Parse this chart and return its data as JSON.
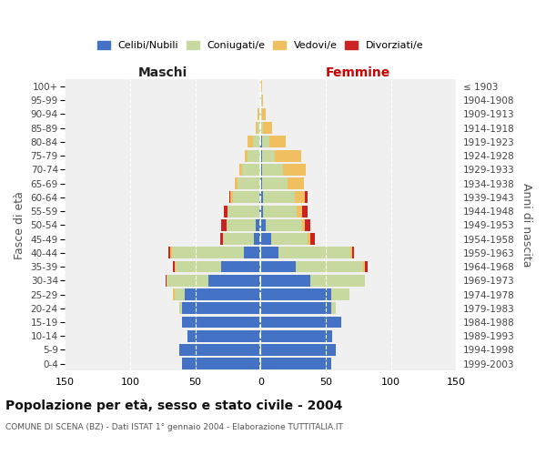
{
  "age_groups": [
    "0-4",
    "5-9",
    "10-14",
    "15-19",
    "20-24",
    "25-29",
    "30-34",
    "35-39",
    "40-44",
    "45-49",
    "50-54",
    "55-59",
    "60-64",
    "65-69",
    "70-74",
    "75-79",
    "80-84",
    "85-89",
    "90-94",
    "95-99",
    "100+"
  ],
  "birth_years": [
    "1999-2003",
    "1994-1998",
    "1989-1993",
    "1984-1988",
    "1979-1983",
    "1974-1978",
    "1969-1973",
    "1964-1968",
    "1959-1963",
    "1954-1958",
    "1949-1953",
    "1944-1948",
    "1939-1943",
    "1934-1938",
    "1929-1933",
    "1924-1928",
    "1919-1923",
    "1914-1918",
    "1909-1913",
    "1904-1908",
    "≤ 1903"
  ],
  "male_celibi": [
    60,
    62,
    56,
    60,
    60,
    58,
    40,
    30,
    13,
    5,
    4,
    1,
    1,
    0,
    0,
    0,
    0,
    0,
    0,
    0,
    0
  ],
  "male_coniugati": [
    0,
    0,
    0,
    0,
    2,
    8,
    32,
    35,
    55,
    24,
    22,
    24,
    20,
    18,
    14,
    10,
    6,
    2,
    1,
    0,
    0
  ],
  "male_vedovi": [
    0,
    0,
    0,
    0,
    0,
    1,
    0,
    1,
    1,
    0,
    0,
    0,
    2,
    2,
    2,
    2,
    4,
    2,
    1,
    0,
    0
  ],
  "male_divorziati": [
    0,
    0,
    0,
    0,
    0,
    0,
    1,
    1,
    2,
    2,
    4,
    3,
    1,
    0,
    0,
    0,
    0,
    0,
    0,
    0,
    0
  ],
  "female_celibi": [
    54,
    58,
    55,
    62,
    54,
    54,
    38,
    27,
    14,
    8,
    4,
    2,
    2,
    1,
    1,
    1,
    1,
    0,
    0,
    0,
    0
  ],
  "female_coniugati": [
    0,
    0,
    0,
    0,
    4,
    14,
    42,
    52,
    55,
    28,
    28,
    26,
    24,
    20,
    16,
    10,
    6,
    2,
    1,
    1,
    0
  ],
  "female_vedovi": [
    0,
    0,
    0,
    0,
    0,
    0,
    0,
    1,
    1,
    2,
    2,
    4,
    8,
    12,
    18,
    20,
    12,
    7,
    3,
    1,
    1
  ],
  "female_divorziati": [
    0,
    0,
    0,
    0,
    0,
    0,
    0,
    2,
    2,
    4,
    4,
    4,
    2,
    0,
    0,
    0,
    0,
    0,
    0,
    0,
    0
  ],
  "color_celibi": "#4472c4",
  "color_coniugati": "#c8d9a0",
  "color_vedovi": "#f0c060",
  "color_divorziati": "#cc2222",
  "title": "Popolazione per età, sesso e stato civile - 2004",
  "subtitle": "COMUNE DI SCENA (BZ) - Dati ISTAT 1° gennaio 2004 - Elaborazione TUTTITALIA.IT",
  "xlabel_maschi": "Maschi",
  "xlabel_femmine": "Femmine",
  "ylabel_left": "Fasce di età",
  "ylabel_right": "Anni di nascita",
  "xlim": 150,
  "bg_color": "#ffffff",
  "plot_bg": "#f0f0f0",
  "grid_color": "#dddddd",
  "bar_height": 0.85
}
